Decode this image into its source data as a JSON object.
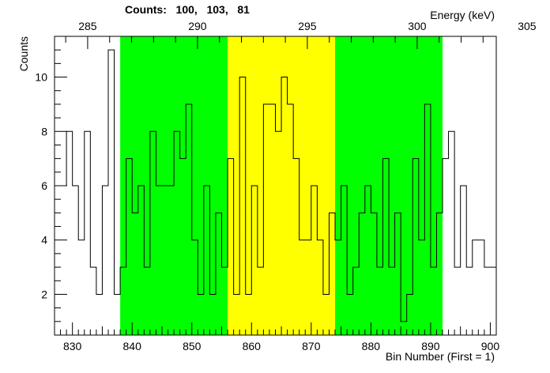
{
  "counts_title": "Counts:   100,   103,   81",
  "colors": {
    "region_side": "#00ff00",
    "region_center": "#ffff00",
    "line": "#000000"
  },
  "chart_data": {
    "type": "step-histogram",
    "title": "",
    "xlabel": "Bin Number (First = 1)",
    "ylabel": "Counts",
    "top_axis_label": "Energy (keV)",
    "xlim": [
      827,
      901
    ],
    "ylim": [
      0.5,
      11.5
    ],
    "x_ticks": [
      830,
      840,
      850,
      860,
      870,
      880,
      890,
      900
    ],
    "y_ticks": [
      2,
      4,
      6,
      8,
      10
    ],
    "top_ticks": [
      285,
      290,
      295,
      300,
      305
    ],
    "energy_calibration": {
      "bin_at_285_keV": 832.55,
      "bins_per_keV": 3.68
    },
    "regions": [
      {
        "role": "side",
        "x_from": 838,
        "x_to": 856
      },
      {
        "role": "center",
        "x_from": 856,
        "x_to": 874
      },
      {
        "role": "side",
        "x_from": 874,
        "x_to": 892
      }
    ],
    "bins": {
      "first_bin_low_edge": 828,
      "bin_width": 1,
      "counts": [
        6,
        8,
        6,
        4,
        8,
        3,
        2,
        6,
        11,
        2,
        3,
        7,
        5,
        6,
        3,
        8,
        6,
        6,
        6,
        8,
        7,
        9,
        4,
        2,
        6,
        2,
        5,
        3,
        7,
        2,
        10,
        2,
        6,
        3,
        9,
        9,
        8,
        10,
        9,
        7,
        4,
        4,
        6,
        4,
        2,
        5,
        4,
        6,
        2,
        3,
        5,
        6,
        5,
        3,
        7,
        3,
        5,
        1,
        2,
        7,
        4,
        9,
        3,
        5,
        7,
        8,
        3,
        6,
        3,
        4,
        4,
        3,
        3
      ]
    }
  }
}
